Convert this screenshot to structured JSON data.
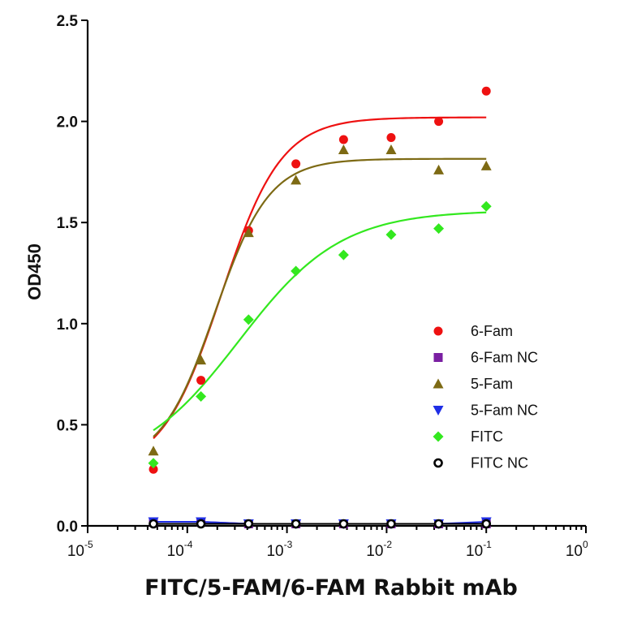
{
  "chart_data": {
    "type": "scatter",
    "title": "",
    "xlabel": "FITC/5-FAM/6-FAM Rabbit mAb",
    "ylabel": "OD450",
    "xscale": "log",
    "xlim": [
      1e-05,
      1
    ],
    "ylim": [
      0,
      2.5
    ],
    "yticks": [
      "0.0",
      "0.5",
      "1.0",
      "1.5",
      "2.0",
      "2.5"
    ],
    "xticks": [
      {
        "base": "10",
        "exp": "-5"
      },
      {
        "base": "10",
        "exp": "-4"
      },
      {
        "base": "10",
        "exp": "-3"
      },
      {
        "base": "10",
        "exp": "-2"
      },
      {
        "base": "10",
        "exp": "-1"
      },
      {
        "base": "10",
        "exp": "0"
      }
    ],
    "legend_position": "bottom-right",
    "x": [
      4.57e-05,
      0.000137,
      0.000412,
      0.00123,
      0.0037,
      0.0111,
      0.0333,
      0.1
    ],
    "series": [
      {
        "name": "6-Fam",
        "marker": "circle",
        "color": "#ee1111",
        "values": [
          0.28,
          0.72,
          1.46,
          1.79,
          1.91,
          1.92,
          2.0,
          2.15
        ],
        "fit": {
          "bottom": 0.27,
          "top": 2.02,
          "ec50": 0.00022,
          "hill": 1.45
        }
      },
      {
        "name": "6-Fam NC",
        "marker": "square",
        "color": "#7a1fa2",
        "values": [
          0.02,
          0.02,
          0.01,
          0.01,
          0.01,
          0.01,
          0.01,
          0.01
        ]
      },
      {
        "name": "5-Fam",
        "marker": "triangle-up",
        "color": "#7d6a14",
        "values": [
          0.37,
          0.82,
          1.45,
          1.71,
          1.86,
          1.86,
          1.76,
          1.78
        ],
        "fit": {
          "bottom": 0.3,
          "top": 1.815,
          "ec50": 0.00019,
          "hill": 1.6
        }
      },
      {
        "name": "5-Fam NC",
        "marker": "triangle-down",
        "color": "#1f2ee6",
        "values": [
          0.02,
          0.02,
          0.01,
          0.01,
          0.01,
          0.01,
          0.01,
          0.02
        ]
      },
      {
        "name": "FITC",
        "marker": "diamond",
        "color": "#33e81f",
        "values": [
          0.31,
          0.64,
          1.02,
          1.26,
          1.34,
          1.44,
          1.47,
          1.58
        ],
        "fit": {
          "bottom": 0.27,
          "top": 1.56,
          "ec50": 0.00033,
          "hill": 0.85
        }
      },
      {
        "name": "FITC NC",
        "marker": "open-circle",
        "color": "#000000",
        "values": [
          0.01,
          0.01,
          0.01,
          0.01,
          0.01,
          0.01,
          0.01,
          0.01
        ]
      }
    ]
  }
}
